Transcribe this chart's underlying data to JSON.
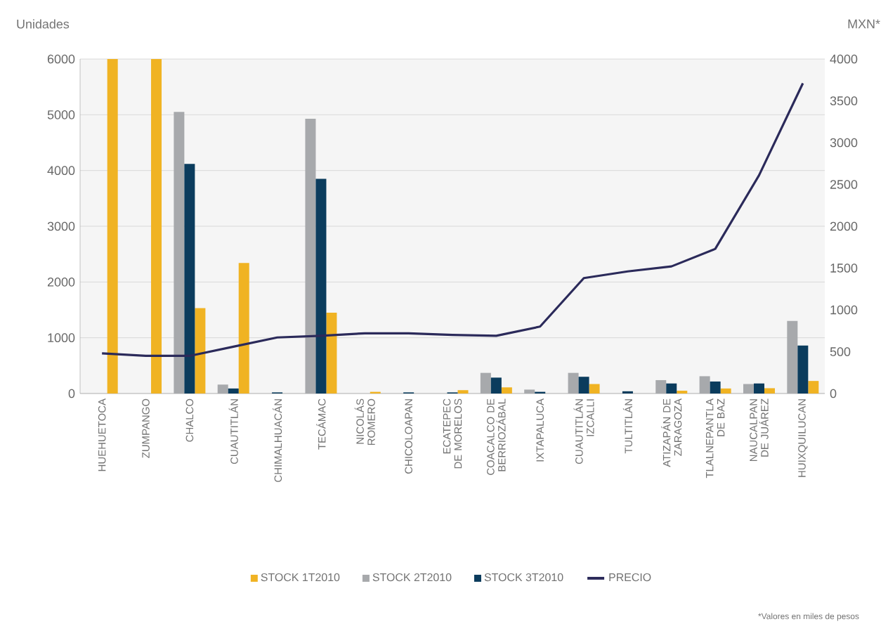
{
  "chart_data": {
    "type": "bar",
    "ylabel": "Unidades",
    "y2label": "MXN*",
    "categories": [
      "HUEHUETOCA",
      "ZUMPANGO",
      "CHALCO",
      "CUAUTITLÁN",
      "CHIMALHUACÁN",
      "TECÁMAC",
      "NICOLÁS ROMERO",
      "CHICOLOAPAN",
      "ECATEPEC DE MORELOS",
      "COACALCO DE BERRIOZÁBAL",
      "IXTAPALUCA",
      "CUAUTITLÁN IZCALLI",
      "TULTITLÁN",
      "ATIZAPÁN DE ZARAGOZA",
      "TLALNEPANTLA DE BAZ",
      "NAUCALPAN DE JUÁREZ",
      "HUIXQUILUCAN"
    ],
    "series": [
      {
        "name": "STOCK 1T2010",
        "color": "#f0b323",
        "values": [
          6000,
          6000,
          1530,
          2340,
          null,
          1450,
          30,
          null,
          60,
          110,
          null,
          170,
          null,
          50,
          90,
          95,
          225
        ]
      },
      {
        "name": "STOCK 2T2010",
        "color": "#a7a9ac",
        "values": [
          null,
          null,
          5050,
          160,
          null,
          4930,
          null,
          null,
          null,
          370,
          70,
          370,
          null,
          240,
          310,
          170,
          1300
        ]
      },
      {
        "name": "STOCK 3T2010",
        "color": "#0b3c5d",
        "values": [
          null,
          null,
          4120,
          90,
          20,
          3850,
          null,
          20,
          20,
          285,
          30,
          300,
          40,
          180,
          215,
          180,
          860
        ]
      },
      {
        "name": "PRECIO",
        "type": "line",
        "axis": "y2",
        "color": "#2b2a5a",
        "values": [
          480,
          450,
          450,
          560,
          670,
          690,
          720,
          720,
          700,
          690,
          800,
          1380,
          1460,
          1520,
          1730,
          2610,
          3710
        ]
      }
    ],
    "ylim": [
      0,
      6000
    ],
    "yticks": [
      0,
      1000,
      2000,
      3000,
      4000,
      5000,
      6000
    ],
    "y2lim": [
      0,
      4000
    ],
    "y2ticks": [
      0,
      500,
      1000,
      1500,
      2000,
      2500,
      3000,
      3500,
      4000
    ],
    "grid": "y",
    "legend": "bottom",
    "annotations": [
      "*Valores en miles de pesos"
    ]
  }
}
